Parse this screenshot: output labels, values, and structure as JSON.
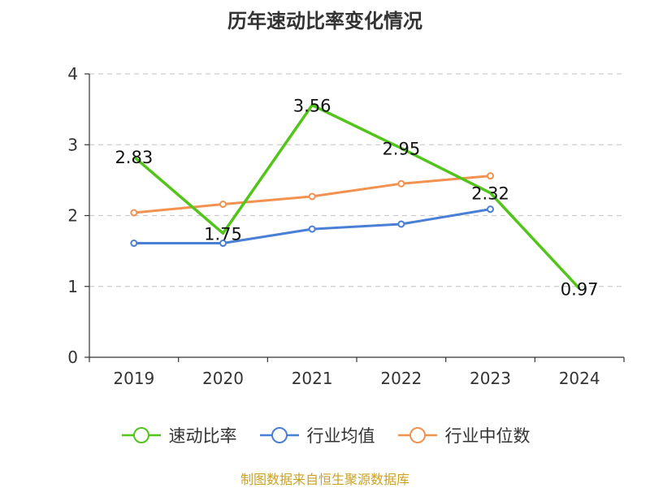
{
  "chart_data": {
    "type": "line",
    "title": "历年速动比率变化情况",
    "categories": [
      "2019",
      "2020",
      "2021",
      "2022",
      "2023",
      "2024"
    ],
    "ylim": [
      0,
      4
    ],
    "yticks": [
      0,
      1,
      2,
      3,
      4
    ],
    "grid": true,
    "legend_position": "bottom",
    "series": [
      {
        "name": "速动比率",
        "color": "#52c41a",
        "values": [
          2.83,
          1.75,
          3.56,
          2.95,
          2.32,
          0.97
        ],
        "labels": [
          "2.83",
          "1.75",
          "3.56",
          "2.95",
          "2.32",
          "0.97"
        ],
        "markers": false
      },
      {
        "name": "行业均值",
        "color": "#4a7fd6",
        "values": [
          1.61,
          1.61,
          1.81,
          1.88,
          2.09,
          null
        ],
        "markers": true
      },
      {
        "name": "行业中位数",
        "color": "#f39150",
        "values": [
          2.04,
          2.16,
          2.27,
          2.45,
          2.56,
          null
        ],
        "markers": true
      }
    ]
  },
  "footer": {
    "source": "制图数据来自恒生聚源数据库"
  }
}
